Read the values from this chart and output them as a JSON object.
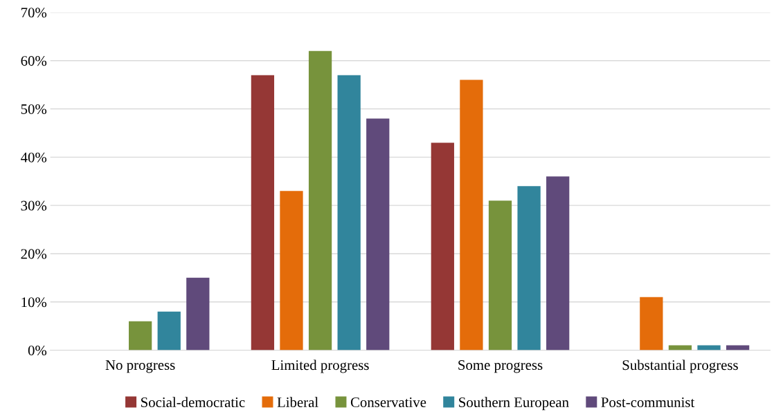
{
  "chart_data": {
    "type": "bar",
    "categories": [
      "No progress",
      "Limited progress",
      "Some progress",
      "Substantial progress"
    ],
    "series": [
      {
        "name": "Social-democratic",
        "color": "#953735",
        "values": [
          0,
          57,
          43,
          0
        ]
      },
      {
        "name": "Liberal",
        "color": "#e46c0a",
        "values": [
          0,
          33,
          56,
          11
        ]
      },
      {
        "name": "Conservative",
        "color": "#77933c",
        "values": [
          6,
          62,
          31,
          1
        ]
      },
      {
        "name": "Southern European",
        "color": "#31859c",
        "values": [
          8,
          57,
          34,
          1
        ]
      },
      {
        "name": "Post-communist",
        "color": "#604a7b",
        "values": [
          15,
          48,
          36,
          1
        ]
      }
    ],
    "ylim": [
      0,
      70
    ],
    "yticks": [
      {
        "value": 0,
        "label": "0%"
      },
      {
        "value": 10,
        "label": "10%"
      },
      {
        "value": 20,
        "label": "20%"
      },
      {
        "value": 30,
        "label": "30%"
      },
      {
        "value": 40,
        "label": "40%"
      },
      {
        "value": 50,
        "label": "50%"
      },
      {
        "value": 60,
        "label": "60%"
      },
      {
        "value": 70,
        "label": "70%"
      }
    ],
    "grid": "y",
    "legend": "bottom"
  }
}
